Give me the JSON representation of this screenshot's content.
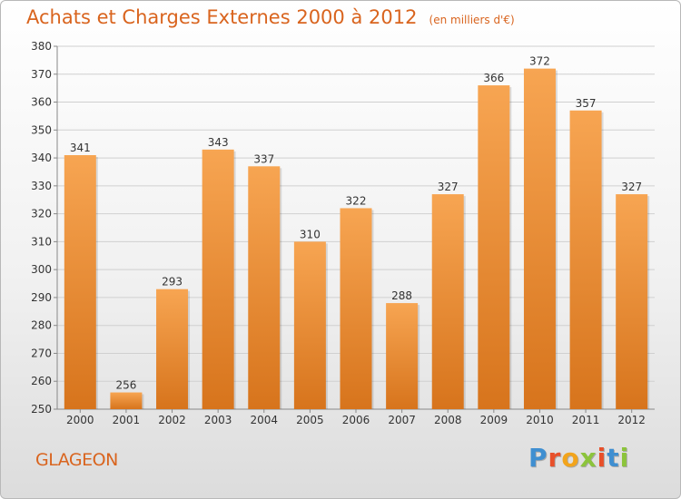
{
  "title": "Achats et Charges Externes 2000 à 2012",
  "unit_note": "(en milliers d'€)",
  "commune": "GLAGEON",
  "logo": {
    "text": "Proxiti",
    "letter_colors": [
      "#3f8fd1",
      "#e8502a",
      "#f2a41c",
      "#8cc43c",
      "#e8502a",
      "#3f8fd1",
      "#8cc43c"
    ]
  },
  "colors": {
    "bar_top": "#f7a552",
    "bar_bottom": "#d7741c",
    "accent": "#d9641e",
    "grid": "#d0d0d0"
  },
  "chart_data": {
    "type": "bar",
    "title": "Achats et Charges Externes 2000 à 2012",
    "xlabel": "",
    "ylabel": "",
    "categories": [
      "2000",
      "2001",
      "2002",
      "2003",
      "2004",
      "2005",
      "2006",
      "2007",
      "2008",
      "2009",
      "2010",
      "2011",
      "2012"
    ],
    "values": [
      341,
      256,
      293,
      343,
      337,
      310,
      322,
      288,
      327,
      366,
      372,
      357,
      327
    ],
    "ylim": [
      250,
      380
    ],
    "yticks": [
      250,
      260,
      270,
      280,
      290,
      300,
      310,
      320,
      330,
      340,
      350,
      360,
      370,
      380
    ],
    "grid": true,
    "data_labels": true
  }
}
